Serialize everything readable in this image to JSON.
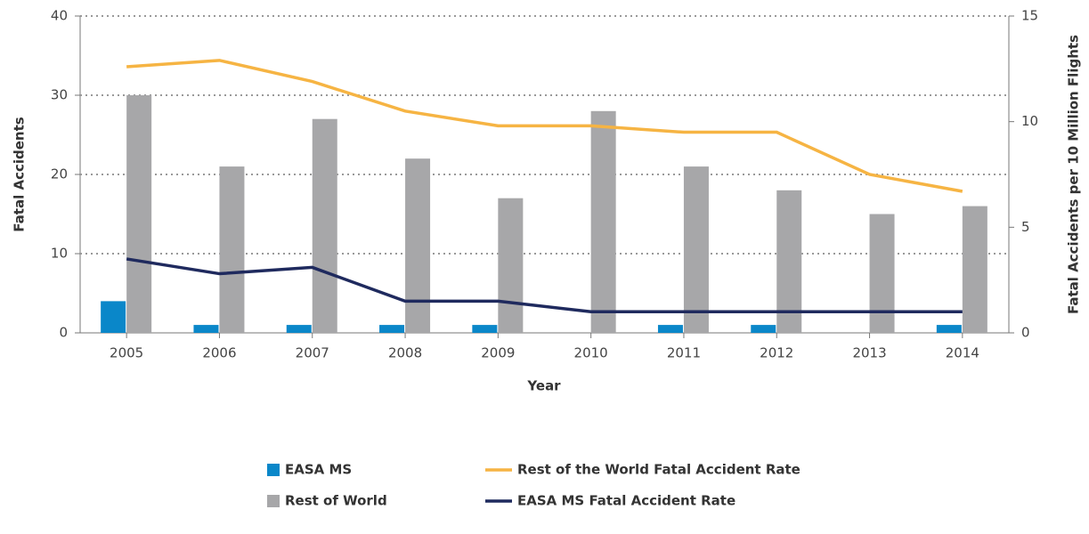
{
  "chart_data": {
    "type": "bar",
    "x_label": "Year",
    "y_label": "Fatal Accidents",
    "y2_label": "Fatal Accidents per 10 Million Flights",
    "categories": [
      "2005",
      "2006",
      "2007",
      "2008",
      "2009",
      "2010",
      "2011",
      "2012",
      "2013",
      "2014"
    ],
    "series": [
      {
        "name": "EASA MS",
        "type": "bar",
        "color": "#0a87c9",
        "values": [
          4,
          1,
          1,
          1,
          1,
          0,
          1,
          1,
          0,
          1
        ]
      },
      {
        "name": "Rest of World",
        "type": "bar",
        "color": "#a7a7a9",
        "values": [
          30,
          21,
          27,
          22,
          17,
          28,
          21,
          18,
          15,
          16
        ]
      },
      {
        "name": "Rest of the World Fatal Accident Rate",
        "type": "line",
        "axis": "y2",
        "color": "#f6b443",
        "values": [
          12.6,
          12.9,
          11.9,
          10.5,
          9.8,
          9.8,
          9.5,
          9.5,
          7.5,
          6.7
        ]
      },
      {
        "name": "EASA MS Fatal Accident Rate",
        "type": "line",
        "axis": "y2",
        "color": "#1f2a5e",
        "values": [
          3.5,
          2.8,
          3.1,
          1.5,
          1.5,
          1.0,
          1.0,
          1.0,
          1.0,
          1.0
        ]
      }
    ],
    "ylim": [
      0,
      40
    ],
    "yticks": [
      0,
      10,
      20,
      30,
      40
    ],
    "y2lim": [
      0,
      15
    ],
    "y2ticks": [
      0,
      5,
      10,
      15
    ],
    "grid": true
  }
}
